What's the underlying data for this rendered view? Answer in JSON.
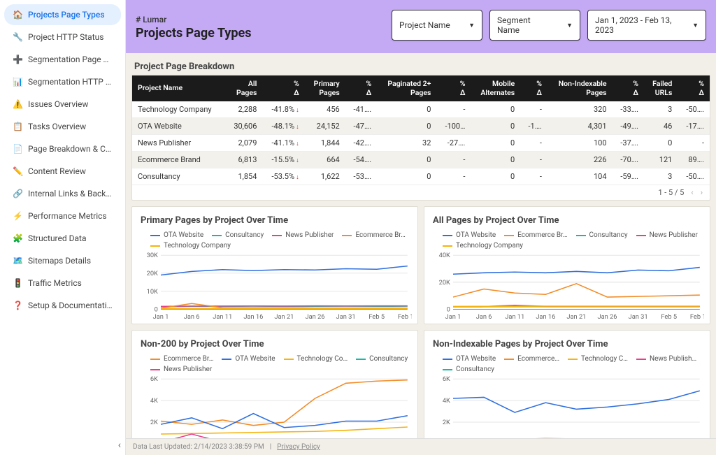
{
  "brand": "# Lumar",
  "page_title": "Projects Page Types",
  "dropdowns": {
    "project": "Project Name",
    "segment": "Segment Name",
    "date": "Jan 1, 2023 - Feb 13, 2023"
  },
  "sidebar": {
    "items": [
      {
        "icon": "🏠",
        "label": "Projects Page Types",
        "active": true
      },
      {
        "icon": "🔧",
        "label": "Project HTTP Status"
      },
      {
        "icon": "➕",
        "label": "Segmentation Page Types"
      },
      {
        "icon": "📊",
        "label": "Segmentation HTTP Status"
      },
      {
        "icon": "⚠️",
        "label": "Issues Overview"
      },
      {
        "icon": "📋",
        "label": "Tasks Overview"
      },
      {
        "icon": "📄",
        "label": "Page Breakdown & Canon…"
      },
      {
        "icon": "✏️",
        "label": "Content Review"
      },
      {
        "icon": "🔗",
        "label": "Internal Links & Backlinks"
      },
      {
        "icon": "⚡",
        "label": "Performance Metrics"
      },
      {
        "icon": "🧩",
        "label": "Structured Data"
      },
      {
        "icon": "🗺️",
        "label": "Sitemaps Details"
      },
      {
        "icon": "🚦",
        "label": "Traffic Metrics"
      },
      {
        "icon": "❓",
        "label": "Setup & Documentation"
      }
    ]
  },
  "table": {
    "title": "Project Page Breakdown",
    "columns": [
      "Project Name",
      "All Pages",
      "% Δ",
      "Primary Pages",
      "% Δ",
      "Paginated 2+ Pages",
      "% Δ",
      "Mobile Alternates",
      "% Δ",
      "Non-Indexable Pages",
      "% Δ",
      "Failed URLs",
      "% Δ"
    ],
    "rows": [
      [
        "Technology Company",
        "2,288",
        "-41.8%",
        "456",
        "-41….",
        "0",
        "-",
        "0",
        "-",
        "320",
        "-33….",
        "3",
        "-50….",
        true
      ],
      [
        "OTA Website",
        "30,606",
        "-48.1%",
        "24,152",
        "-47….",
        "0",
        "-100…",
        "0",
        "-1….",
        "4,301",
        "-49….",
        "46",
        "-17….",
        true
      ],
      [
        "News Publisher",
        "2,079",
        "-41.1%",
        "1,844",
        "-42….",
        "32",
        "-27….",
        "0",
        "-",
        "100",
        "-37….",
        "0",
        "-",
        true
      ],
      [
        "Ecommerce Brand",
        "6,813",
        "-15.5%",
        "664",
        "-54….",
        "0",
        "-",
        "0",
        "-",
        "226",
        "-70….",
        "121",
        "89….",
        true
      ],
      [
        "Consultancy",
        "1,854",
        "-53.5%",
        "1,622",
        "-53….",
        "0",
        "-",
        "0",
        "-",
        "104",
        "-59….",
        "3",
        "-50….",
        true
      ]
    ],
    "pager": "1 - 5 / 5"
  },
  "palette": {
    "ota": "#2f6fde",
    "consultancy": "#18b8a6",
    "news": "#e83e8c",
    "ecommerce": "#f28c28",
    "technology": "#f5b40e",
    "grid": "#cccccc",
    "axis": "#888888",
    "bg": "#ffffff"
  },
  "charts": {
    "x_labels": [
      "Jan 1",
      "Jan 6",
      "Jan 11",
      "Jan 16",
      "Jan 21",
      "Jan 26",
      "Jan 31",
      "Feb 5",
      "Feb 10"
    ],
    "primary": {
      "title": "Primary Pages by Project Over Time",
      "y_max": 30000,
      "y_step": 10000,
      "y_unit": "K",
      "legend_order": [
        "ota",
        "consultancy",
        "news",
        "ecommerce",
        "technology"
      ],
      "legend_labels": {
        "ota": "OTA Website",
        "consultancy": "Consultancy",
        "news": "News Publisher",
        "ecommerce": "Ecommerce Br…",
        "technology": "Technology Company"
      },
      "series": {
        "ota": [
          19000,
          21000,
          22000,
          21500,
          22000,
          21800,
          22500,
          22200,
          24000
        ],
        "consultancy": [
          1500,
          1600,
          1600,
          1700,
          1600,
          1650,
          1700,
          1650,
          1700
        ],
        "news": [
          1600,
          1800,
          1800,
          1850,
          1800,
          1900,
          1850,
          1900,
          1900
        ],
        "ecommerce": [
          600,
          3200,
          900,
          800,
          750,
          700,
          680,
          660,
          650
        ],
        "technology": [
          400,
          450,
          460,
          470,
          460,
          470,
          480,
          470,
          480
        ]
      }
    },
    "allpages": {
      "title": "All Pages by Project Over Time",
      "y_max": 40000,
      "y_step": 20000,
      "y_unit": "K",
      "legend_order": [
        "ota",
        "ecommerce",
        "consultancy",
        "news",
        "technology"
      ],
      "legend_labels": {
        "ota": "OTA Website",
        "ecommerce": "Ecommerce Br…",
        "consultancy": "Consultancy",
        "news": "News Publisher",
        "technology": "Technology Company"
      },
      "series": {
        "ota": [
          26000,
          27000,
          27500,
          27000,
          28000,
          27000,
          29000,
          28500,
          31000
        ],
        "ecommerce": [
          9000,
          15000,
          12000,
          11000,
          19000,
          9000,
          9500,
          10000,
          10500
        ],
        "consultancy": [
          1800,
          1900,
          1900,
          1900,
          1900,
          1900,
          1900,
          1900,
          1900
        ],
        "news": [
          2000,
          2100,
          3000,
          2200,
          2200,
          2200,
          2200,
          2200,
          2200
        ],
        "technology": [
          2100,
          2200,
          2200,
          2300,
          2300,
          2300,
          2300,
          2300,
          2300
        ]
      }
    },
    "non200": {
      "title": "Non-200 by Project Over Time",
      "y_max": 6000,
      "y_step": 2000,
      "y_unit": "K",
      "legend_order": [
        "ecommerce",
        "ota",
        "technology",
        "consultancy",
        "news"
      ],
      "legend_labels": {
        "ecommerce": "Ecommerce Br…",
        "ota": "OTA Website",
        "technology": "Technology Co…",
        "consultancy": "Consultancy",
        "news": "News Publisher"
      },
      "series": {
        "ecommerce": [
          2100,
          1800,
          2200,
          1700,
          2000,
          4200,
          5600,
          5800,
          5900
        ],
        "ota": [
          1800,
          2400,
          1400,
          2800,
          1500,
          1700,
          2100,
          2100,
          2600
        ],
        "technology": [
          900,
          950,
          1000,
          1050,
          1100,
          1150,
          1250,
          1400,
          1550
        ],
        "consultancy": [
          150,
          160,
          160,
          170,
          160,
          170,
          180,
          170,
          180
        ],
        "news": [
          120,
          900,
          140,
          130,
          130,
          130,
          130,
          130,
          130
        ]
      }
    },
    "nonindex": {
      "title": "Non-Indexable Pages by Project Over Time",
      "y_max": 6000,
      "y_step": 2000,
      "y_unit": "K",
      "legend_order": [
        "ota",
        "ecommerce",
        "technology",
        "news",
        "consultancy"
      ],
      "legend_labels": {
        "ota": "OTA Website",
        "ecommerce": "Ecommerce…",
        "technology": "Technology C…",
        "news": "News Publish…",
        "consultancy": "Consultancy"
      },
      "series": {
        "ota": [
          4200,
          4300,
          2900,
          3800,
          3200,
          3400,
          3700,
          4100,
          4900
        ],
        "ecommerce": [
          350,
          400,
          400,
          500,
          450,
          400,
          380,
          360,
          350
        ],
        "technology": [
          300,
          320,
          340,
          350,
          350,
          360,
          360,
          370,
          370
        ],
        "news": [
          120,
          400,
          140,
          130,
          130,
          130,
          130,
          130,
          130
        ],
        "consultancy": [
          100,
          110,
          110,
          110,
          110,
          110,
          110,
          110,
          110
        ]
      }
    }
  },
  "footer": {
    "updated": "Data Last Updated: 2/14/2023 3:38:59 PM",
    "privacy": "Privacy Policy"
  }
}
